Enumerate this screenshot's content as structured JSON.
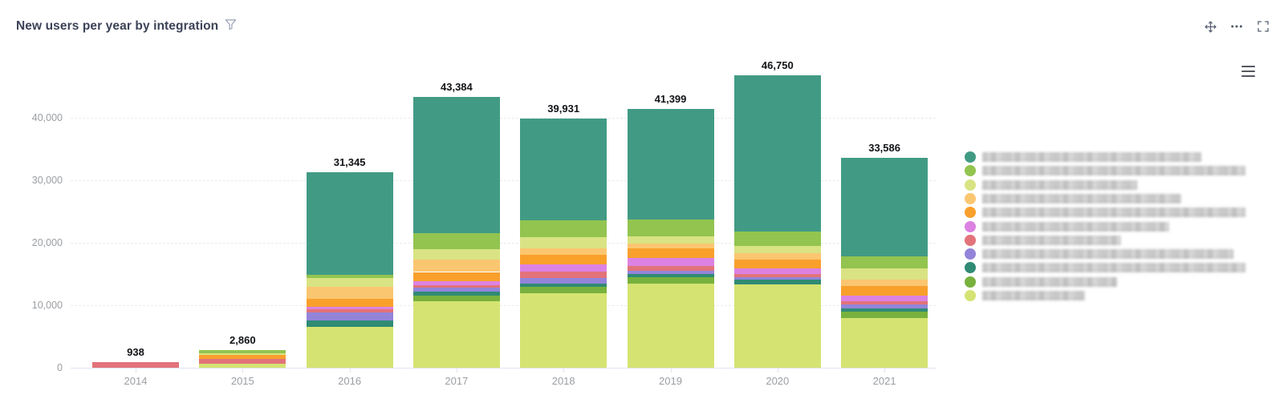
{
  "header": {
    "title": "New users per year by integration",
    "filter_icon": "funnel-icon"
  },
  "toolbar": {
    "move_icon": "move-icon",
    "more_icon": "ellipsis-icon",
    "fullscreen_icon": "fullscreen-icon"
  },
  "chart_menu_icon": "hamburger-icon",
  "chart_data": {
    "type": "bar",
    "stacked": true,
    "title": "New users per year by integration",
    "categories": [
      "2014",
      "2015",
      "2016",
      "2017",
      "2018",
      "2019",
      "2020",
      "2021"
    ],
    "totals": [
      938,
      2860,
      31345,
      43384,
      39931,
      41399,
      46750,
      33586
    ],
    "totals_formatted": [
      "938",
      "2,860",
      "31,345",
      "43,384",
      "39,931",
      "41,399",
      "46,750",
      "33,586"
    ],
    "series": [
      {
        "name": "",
        "label_redacted": true,
        "color": "#419b84",
        "values": [
          0,
          0,
          16445,
          21894,
          16381,
          17669,
          25000,
          15756
        ]
      },
      {
        "name": "",
        "label_redacted": true,
        "color": "#92c44f",
        "values": [
          0,
          600,
          600,
          2500,
          2700,
          2650,
          2250,
          1940
        ]
      },
      {
        "name": "",
        "label_redacted": true,
        "color": "#d9e383",
        "values": [
          0,
          250,
          1400,
          1640,
          1700,
          1200,
          1200,
          1770
        ]
      },
      {
        "name": "",
        "label_redacted": true,
        "color": "#fbc670",
        "values": [
          0,
          0,
          1900,
          2030,
          1050,
          750,
          950,
          1030
        ]
      },
      {
        "name": "",
        "label_redacted": true,
        "color": "#f9a02c",
        "values": [
          0,
          620,
          1200,
          1420,
          1600,
          1600,
          1400,
          1550
        ]
      },
      {
        "name": "",
        "label_redacted": true,
        "color": "#dc82e2",
        "values": [
          0,
          0,
          500,
          650,
          1150,
          1200,
          1000,
          860
        ]
      },
      {
        "name": "",
        "label_redacted": true,
        "color": "#e2737a",
        "values": [
          938,
          750,
          500,
          400,
          1050,
          780,
          450,
          520
        ]
      },
      {
        "name": "",
        "label_redacted": true,
        "color": "#9384da",
        "values": [
          0,
          0,
          1200,
          650,
          900,
          600,
          450,
          650
        ]
      },
      {
        "name": "",
        "label_redacted": true,
        "color": "#2f8b74",
        "values": [
          0,
          0,
          1100,
          600,
          500,
          450,
          750,
          560
        ]
      },
      {
        "name": "",
        "label_redacted": true,
        "color": "#78b13d",
        "values": [
          0,
          0,
          0,
          900,
          1000,
          1000,
          0,
          950
        ]
      },
      {
        "name": "",
        "label_redacted": true,
        "color": "#d5e372",
        "values": [
          0,
          640,
          6500,
          10700,
          11900,
          13500,
          13300,
          8000
        ]
      }
    ],
    "stack_order_note": "first series listed renders at top of stack (reverse render order)",
    "xlabel": "",
    "ylabel": "",
    "ylim": [
      0,
      48000
    ],
    "yticks": {
      "values": [
        0,
        10000,
        20000,
        30000,
        40000
      ],
      "labels": [
        "0",
        "10,000",
        "20,000",
        "30,000",
        "40,000"
      ]
    },
    "grid": "horizontal-dashed",
    "legend_position": "right",
    "legend_labels_redacted": true,
    "legend_blur_widths": [
      273,
      328,
      193,
      248,
      328,
      233,
      173,
      313,
      328,
      168,
      128
    ]
  }
}
